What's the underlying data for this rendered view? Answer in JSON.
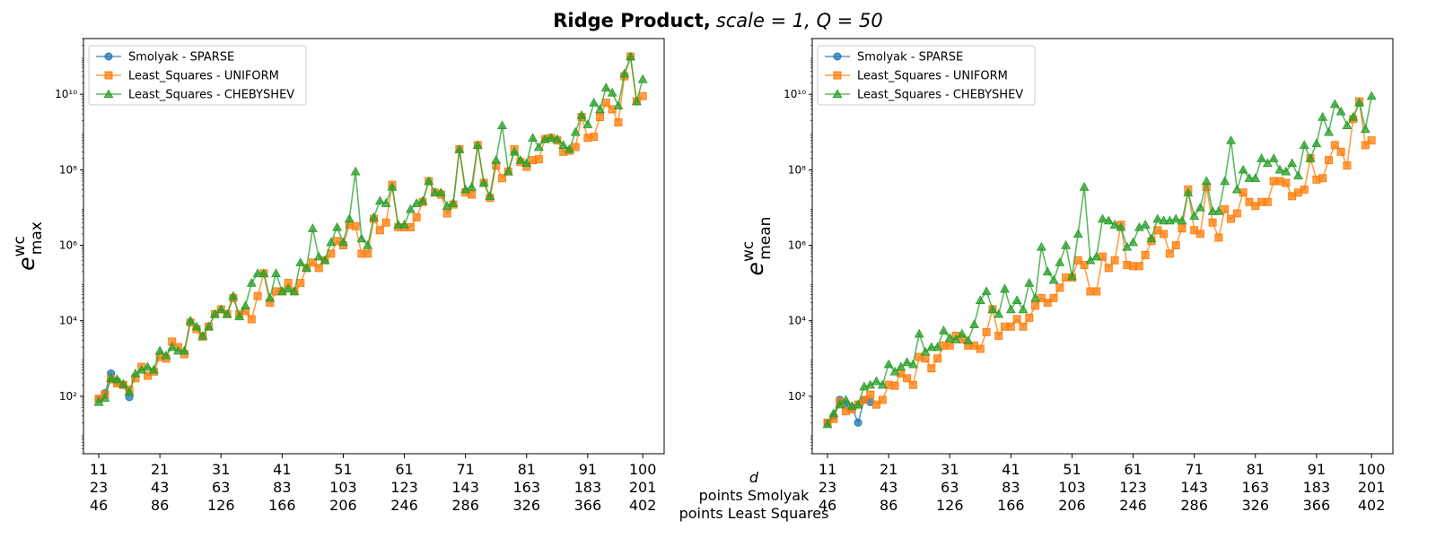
{
  "figure": {
    "title_bold": "Ridge Product,",
    "title_math": "scale = 1, Q = 50"
  },
  "x_rows": {
    "labels": [
      "d",
      "points Smolyak",
      "points Least Squares"
    ],
    "tick_d": [
      11,
      21,
      31,
      41,
      51,
      61,
      71,
      81,
      91,
      100
    ],
    "tick_smolyak": [
      23,
      43,
      63,
      83,
      103,
      123,
      143,
      163,
      183,
      201
    ],
    "tick_ls": [
      46,
      86,
      126,
      166,
      206,
      246,
      286,
      326,
      366,
      402
    ]
  },
  "colors": {
    "smolyak": "#1f77b4",
    "uniform": "#ff7f0e",
    "chebyshev": "#2ca02c"
  },
  "chart_data": [
    {
      "type": "line",
      "ylabel_base": "e",
      "ylabel_sup": "wc",
      "ylabel_sub": "max",
      "yscale": "log",
      "ylim": [
        3,
        300000000000
      ],
      "xlim": [
        8.5,
        103.5
      ],
      "ytick_labels": [
        "10²",
        "10⁴",
        "10⁶",
        "10⁸",
        "10¹⁰"
      ],
      "ytick_values": [
        100,
        10000,
        1000000,
        100000000,
        10000000000
      ],
      "legend_position": "upper-left",
      "legend": [
        "Smolyak - SPARSE",
        "Least_Squares - UNIFORM",
        "Least_Squares - CHEBYSHEV"
      ],
      "series": [
        {
          "name": "Smolyak - SPARSE",
          "marker": "circle",
          "x": [
            11,
            12,
            13,
            14,
            15,
            16
          ],
          "y": [
            85,
            120,
            400,
            250,
            200,
            95
          ]
        },
        {
          "name": "Least_Squares - UNIFORM",
          "marker": "square",
          "x": [
            11,
            12,
            13,
            14,
            15,
            16,
            17,
            18,
            19,
            20,
            21,
            22,
            23,
            24,
            25,
            26,
            27,
            28,
            29,
            30,
            31,
            32,
            33,
            34,
            35,
            36,
            37,
            38,
            39,
            40,
            41,
            42,
            43,
            44,
            45,
            46,
            47,
            48,
            49,
            50,
            51,
            52,
            53,
            54,
            55,
            56,
            57,
            58,
            59,
            60,
            61,
            62,
            63,
            64,
            65,
            66,
            67,
            68,
            69,
            70,
            71,
            72,
            73,
            74,
            75,
            76,
            77,
            78,
            79,
            80,
            81,
            82,
            83,
            84,
            85,
            86,
            87,
            88,
            89,
            90,
            91,
            92,
            93,
            94,
            95,
            96,
            97,
            98,
            99,
            100
          ],
          "y": [
            85,
            110,
            280,
            220,
            200,
            150,
            300,
            600,
            350,
            450,
            1100,
            1000,
            2800,
            2000,
            1300,
            9000,
            6000,
            3800,
            7000,
            15000,
            20000,
            15000,
            40000,
            15000,
            18000,
            11000,
            45000,
            180000,
            30000,
            60000,
            60000,
            100000,
            60000,
            100000,
            250000,
            350000,
            250000,
            400000,
            600000,
            1300000,
            1000000,
            3500000,
            3200000,
            600000,
            600000,
            5000000,
            2500000,
            4000000,
            40000000,
            3000000,
            3000000,
            3000000,
            5500000,
            14000000,
            50000000,
            25000000,
            22000000,
            7000000,
            12000000,
            350000000,
            25000000,
            22000000,
            450000000,
            45000000,
            18000000,
            130000000,
            60000000,
            90000000,
            350000000,
            160000000,
            120000000,
            180000000,
            190000000,
            650000000,
            700000000,
            600000000,
            300000000,
            320000000,
            400000000,
            2500000000,
            700000000,
            750000000,
            2500000000,
            6000000000,
            4000000000,
            1800000000,
            30000000000,
            100000000000,
            6500000000,
            9000000000
          ]
        },
        {
          "name": "Least_Squares - CHEBYSHEV",
          "marker": "triangle",
          "x": [
            11,
            12,
            13,
            14,
            15,
            16,
            17,
            18,
            19,
            20,
            21,
            22,
            23,
            24,
            25,
            26,
            27,
            28,
            29,
            30,
            31,
            32,
            33,
            34,
            35,
            36,
            37,
            38,
            39,
            40,
            41,
            42,
            43,
            44,
            45,
            46,
            47,
            48,
            49,
            50,
            51,
            52,
            53,
            54,
            55,
            56,
            57,
            58,
            59,
            60,
            61,
            62,
            63,
            64,
            65,
            66,
            67,
            68,
            69,
            70,
            71,
            72,
            73,
            74,
            75,
            76,
            77,
            78,
            79,
            80,
            81,
            82,
            83,
            84,
            85,
            86,
            87,
            88,
            89,
            90,
            91,
            92,
            93,
            94,
            95,
            96,
            97,
            98,
            99,
            100
          ],
          "y": [
            70,
            90,
            300,
            280,
            210,
            130,
            400,
            500,
            600,
            500,
            1600,
            1200,
            2000,
            1600,
            1600,
            10000,
            7000,
            4000,
            7000,
            15000,
            20000,
            15000,
            45000,
            13000,
            25000,
            100000,
            180000,
            180000,
            40000,
            180000,
            60000,
            70000,
            60000,
            350000,
            250000,
            2800000,
            500000,
            400000,
            1200000,
            3000000,
            1200000,
            5000000,
            90000000,
            1500000,
            1000000,
            5500000,
            15000000,
            13000000,
            35000000,
            3500000,
            3500000,
            9000000,
            13000000,
            15000000,
            50000000,
            25000000,
            25000000,
            11000000,
            13000000,
            350000000,
            30000000,
            35000000,
            450000000,
            45000000,
            20000000,
            180000000,
            1500000000,
            90000000,
            300000000,
            180000000,
            150000000,
            700000000,
            400000000,
            650000000,
            700000000,
            650000000,
            450000000,
            350000000,
            1000000000,
            2800000000,
            1600000000,
            6000000000,
            4000000000,
            15000000000,
            11000000000,
            5000000000,
            35000000000,
            100000000000,
            6500000000,
            25000000000
          ]
        }
      ]
    },
    {
      "type": "line",
      "ylabel_base": "e",
      "ylabel_sup": "wc",
      "ylabel_sub": "mean",
      "yscale": "log",
      "ylim": [
        3,
        300000000000
      ],
      "xlim": [
        8.5,
        103.5
      ],
      "ytick_labels": [
        "10²",
        "10⁴",
        "10⁶",
        "10⁸",
        "10¹⁰"
      ],
      "ytick_values": [
        100,
        10000,
        1000000,
        100000000,
        10000000000
      ],
      "legend_position": "upper-left",
      "legend": [
        "Smolyak - SPARSE",
        "Least_Squares - UNIFORM",
        "Least_Squares - CHEBYSHEV"
      ],
      "series": [
        {
          "name": "Smolyak - SPARSE",
          "marker": "circle",
          "x": [
            11,
            12,
            13,
            14,
            15,
            16,
            17,
            18
          ],
          "y": [
            20,
            30,
            80,
            60,
            50,
            20,
            80,
            70
          ]
        },
        {
          "name": "Least_Squares - UNIFORM",
          "marker": "square",
          "x": [
            11,
            12,
            13,
            14,
            15,
            16,
            17,
            18,
            19,
            20,
            21,
            22,
            23,
            24,
            25,
            26,
            27,
            28,
            29,
            30,
            31,
            32,
            33,
            34,
            35,
            36,
            37,
            38,
            39,
            40,
            41,
            42,
            43,
            44,
            45,
            46,
            47,
            48,
            49,
            50,
            51,
            52,
            53,
            54,
            55,
            56,
            57,
            58,
            59,
            60,
            61,
            62,
            63,
            64,
            65,
            66,
            67,
            68,
            69,
            70,
            71,
            72,
            73,
            74,
            75,
            76,
            77,
            78,
            79,
            80,
            81,
            82,
            83,
            84,
            85,
            86,
            87,
            88,
            89,
            90,
            91,
            92,
            93,
            94,
            95,
            96,
            97,
            98,
            99,
            100
          ],
          "y": [
            20,
            25,
            70,
            40,
            45,
            60,
            80,
            110,
            60,
            80,
            200,
            190,
            400,
            300,
            200,
            1100,
            1000,
            550,
            1000,
            2200,
            2200,
            4000,
            3200,
            2200,
            2200,
            1800,
            5000,
            20000,
            4000,
            7000,
            7000,
            11000,
            7000,
            12000,
            25000,
            40000,
            30000,
            40000,
            75000,
            140000,
            140000,
            400000,
            300000,
            60000,
            60000,
            500000,
            250000,
            400000,
            3500000,
            300000,
            280000,
            280000,
            550000,
            1300000,
            2500000,
            2000000,
            600000,
            1000000,
            2800000,
            30000000,
            2500000,
            2000000,
            35000000,
            4000000,
            1600000,
            9000000,
            5000000,
            7000000,
            25000000,
            14000000,
            11000000,
            14000000,
            14000000,
            50000000,
            50000000,
            45000000,
            20000000,
            25000000,
            30000000,
            200000000,
            55000000,
            60000000,
            180000000,
            450000000,
            300000000,
            130000000,
            2200000000,
            6500000000,
            450000000,
            600000000
          ]
        },
        {
          "name": "Least_Squares - CHEBYSHEV",
          "marker": "triangle",
          "x": [
            11,
            12,
            13,
            14,
            15,
            16,
            17,
            18,
            19,
            20,
            21,
            22,
            23,
            24,
            25,
            26,
            27,
            28,
            29,
            30,
            31,
            32,
            33,
            34,
            35,
            36,
            37,
            38,
            39,
            40,
            41,
            42,
            43,
            44,
            45,
            46,
            47,
            48,
            49,
            50,
            51,
            52,
            53,
            54,
            55,
            56,
            57,
            58,
            59,
            60,
            61,
            62,
            63,
            64,
            65,
            66,
            67,
            68,
            69,
            70,
            71,
            72,
            73,
            74,
            75,
            76,
            77,
            78,
            79,
            80,
            81,
            82,
            83,
            84,
            85,
            86,
            87,
            88,
            89,
            90,
            91,
            92,
            93,
            94,
            95,
            96,
            97,
            98,
            99,
            100
          ],
          "y": [
            18,
            35,
            60,
            80,
            55,
            60,
            180,
            200,
            250,
            200,
            700,
            450,
            600,
            800,
            700,
            4500,
            1500,
            2000,
            2000,
            5500,
            3500,
            3200,
            4500,
            3000,
            8000,
            35000,
            60000,
            20000,
            15000,
            70000,
            20000,
            35000,
            20000,
            100000,
            40000,
            900000,
            200000,
            120000,
            350000,
            1000000,
            150000,
            2000000,
            35000000,
            400000,
            500000,
            5000000,
            4500000,
            3500000,
            3000000,
            900000,
            1200000,
            3000000,
            3500000,
            1500000,
            5000000,
            4500000,
            4500000,
            5000000,
            4500000,
            25000000,
            6000000,
            10000000,
            50000000,
            8000000,
            8000000,
            50000000,
            600000000,
            30000000,
            100000000,
            60000000,
            60000000,
            200000000,
            150000000,
            200000000,
            100000000,
            90000000,
            150000000,
            70000000,
            450000000,
            200000000,
            500000000,
            2500000000,
            1000000000,
            5500000000,
            3500000000,
            1500000000,
            2500000000,
            6000000000,
            1200000000,
            9000000000
          ]
        }
      ]
    }
  ]
}
